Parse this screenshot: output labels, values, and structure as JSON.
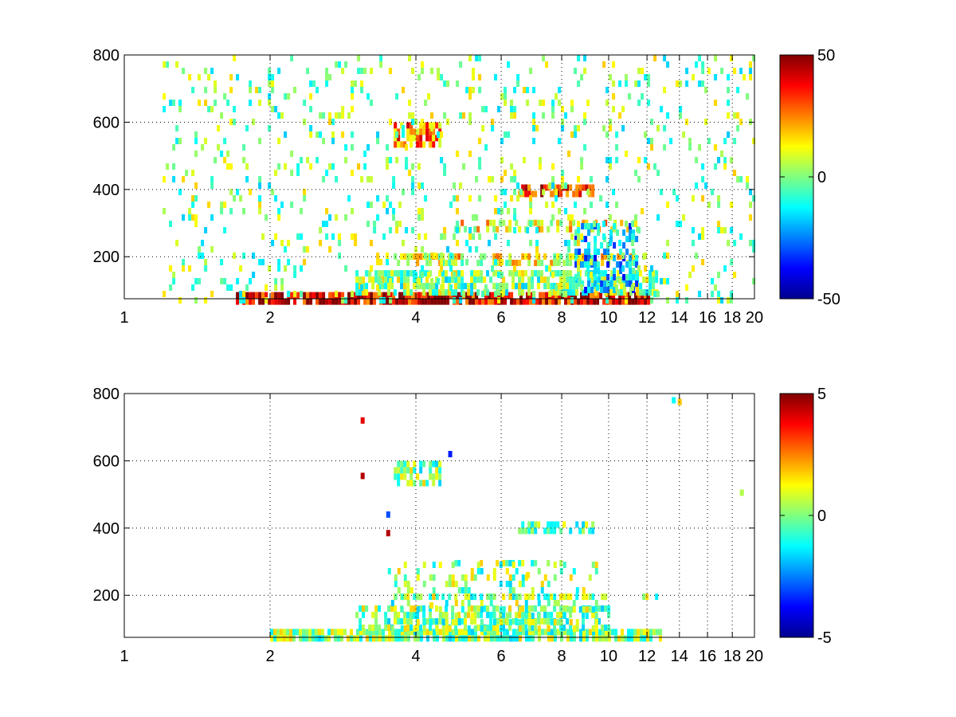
{
  "colormap": "jet",
  "colormap_stops": [
    "#00008f",
    "#0000ff",
    "#00ffff",
    "#80ff80",
    "#ffff00",
    "#ff0000",
    "#800000"
  ],
  "gridline_color": "#000000",
  "chart_data": [
    {
      "type": "heatmap",
      "title": "",
      "xlabel": "",
      "ylabel": "",
      "xscale": "log",
      "xlim": [
        1,
        20
      ],
      "ylim": [
        75,
        800
      ],
      "x_ticks": [
        "1",
        "2",
        "4",
        "6",
        "8",
        "10",
        "12",
        "14",
        "16",
        "18",
        "20"
      ],
      "y_ticks": [
        "200",
        "400",
        "600",
        "800"
      ],
      "colorbar": {
        "range": [
          -50,
          50
        ],
        "ticks": [
          "50",
          "0",
          "-50"
        ]
      },
      "grid": true,
      "regions": [
        {
          "x": [
            1.7,
            12.0
          ],
          "y": [
            75,
            95
          ],
          "value": 40,
          "density": 0.9
        },
        {
          "x": [
            3.0,
            12.5
          ],
          "y": [
            95,
            160
          ],
          "value": 0,
          "density": 0.7
        },
        {
          "x": [
            3.6,
            11.8
          ],
          "y": [
            185,
            210
          ],
          "value": 10,
          "density": 0.6
        },
        {
          "x": [
            6.5,
            9.3
          ],
          "y": [
            395,
            415
          ],
          "value": 35,
          "density": 0.7
        },
        {
          "x": [
            4.8,
            11.5
          ],
          "y": [
            290,
            310
          ],
          "value": 15,
          "density": 0.5
        },
        {
          "x": [
            8.5,
            11.5
          ],
          "y": [
            100,
            300
          ],
          "value": -20,
          "density": 0.5
        },
        {
          "x": [
            3.6,
            4.5
          ],
          "y": [
            540,
            600
          ],
          "value": 25,
          "density": 0.7
        },
        {
          "x": [
            1.2,
            20.0
          ],
          "y": [
            75,
            800
          ],
          "value": 0,
          "density": 0.12
        }
      ]
    },
    {
      "type": "heatmap",
      "title": "",
      "xlabel": "",
      "ylabel": "",
      "xscale": "log",
      "xlim": [
        1,
        20
      ],
      "ylim": [
        75,
        800
      ],
      "x_ticks": [
        "1",
        "2",
        "4",
        "6",
        "8",
        "10",
        "12",
        "14",
        "16",
        "18",
        "20"
      ],
      "y_ticks": [
        "200",
        "400",
        "600",
        "800"
      ],
      "colorbar": {
        "range": [
          -5,
          5
        ],
        "ticks": [
          "5",
          "0",
          "-5"
        ]
      },
      "grid": true,
      "regions": [
        {
          "x": [
            2.0,
            12.7
          ],
          "y": [
            75,
            100
          ],
          "value": 0,
          "density": 0.85
        },
        {
          "x": [
            3.0,
            10.0
          ],
          "y": [
            100,
            170
          ],
          "value": 0,
          "density": 0.55
        },
        {
          "x": [
            3.6,
            12.5
          ],
          "y": [
            190,
            205
          ],
          "value": 0,
          "density": 0.45
        },
        {
          "x": [
            6.5,
            9.3
          ],
          "y": [
            400,
            420
          ],
          "value": 0,
          "density": 0.55
        },
        {
          "x": [
            3.6,
            4.5
          ],
          "y": [
            540,
            600
          ],
          "value": 0,
          "density": 0.6
        },
        {
          "x": [
            4.8,
            8.0
          ],
          "y": [
            290,
            305
          ],
          "value": 0,
          "density": 0.4
        },
        {
          "x": [
            3.5,
            9.5
          ],
          "y": [
            100,
            300
          ],
          "value": 0,
          "density": 0.25
        }
      ],
      "highlights": [
        {
          "x": 14.0,
          "y": 775,
          "value": 1.8
        },
        {
          "x": 13.6,
          "y": 780,
          "value": -1.2
        },
        {
          "x": 4.3,
          "y": 170,
          "value": 1.5
        },
        {
          "x": 6.8,
          "y": 260,
          "value": 1.5
        },
        {
          "x": 3.1,
          "y": 720,
          "value": 4.0
        },
        {
          "x": 3.1,
          "y": 555,
          "value": 4.5
        },
        {
          "x": 3.5,
          "y": 440,
          "value": -3.0
        },
        {
          "x": 3.5,
          "y": 385,
          "value": 4.5
        },
        {
          "x": 4.7,
          "y": 620,
          "value": -3.5
        },
        {
          "x": 18.8,
          "y": 505,
          "value": 0.5
        }
      ]
    }
  ]
}
